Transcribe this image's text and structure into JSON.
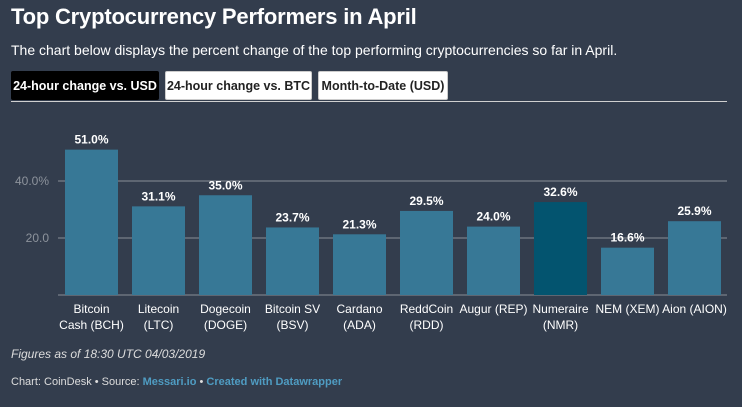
{
  "header": {
    "title": "Top Cryptocurrency Performers in April",
    "subtitle": "The chart below displays the percent change of the top performing cryptocurrencies so far in April."
  },
  "tabs": [
    {
      "label": "24-hour change vs. USD",
      "active": true
    },
    {
      "label": "24-hour change vs. BTC",
      "active": false
    },
    {
      "label": "Month-to-Date (USD)",
      "active": false
    }
  ],
  "colors": {
    "bar": "#377896",
    "highlight_bar": "#03546f",
    "background": "#333d4d",
    "gridline": "#8a8f97"
  },
  "chart_data": {
    "type": "bar",
    "title": "Top Cryptocurrency Performers in April",
    "xlabel": "",
    "ylabel": "",
    "ylim": [
      0,
      52
    ],
    "yticks": [
      {
        "value": 20,
        "label": "20.0"
      },
      {
        "value": 40,
        "label": "40.0%"
      }
    ],
    "grid": true,
    "categories": [
      [
        "Bitcoin",
        "Cash (BCH)"
      ],
      [
        "Litecoin",
        "(LTC)"
      ],
      [
        "Dogecoin",
        "(DOGE)"
      ],
      [
        "Bitcoin SV",
        "(BSV)"
      ],
      [
        "Cardano",
        "(ADA)"
      ],
      [
        "ReddCoin",
        "(RDD)"
      ],
      [
        "Augur (REP)"
      ],
      [
        "Numeraire",
        "(NMR)"
      ],
      [
        "NEM (XEM)"
      ],
      [
        "Aion (AION)"
      ]
    ],
    "values": [
      51.0,
      31.1,
      35.0,
      23.7,
      21.3,
      29.5,
      24.0,
      32.6,
      16.6,
      25.9
    ],
    "value_labels": [
      "51.0%",
      "31.1%",
      "35.0%",
      "23.7%",
      "21.3%",
      "29.5%",
      "24.0%",
      "32.6%",
      "16.6%",
      "25.9%"
    ],
    "highlighted_index": 7
  },
  "notes": {
    "figures_as_of": "Figures as of 18:30 UTC 04/03/2019"
  },
  "footer": {
    "chart_credit": "Chart: CoinDesk",
    "separator": " • ",
    "source_prefix": "Source: ",
    "source_link": "Messari.io",
    "created_with": "Created with Datawrapper"
  }
}
